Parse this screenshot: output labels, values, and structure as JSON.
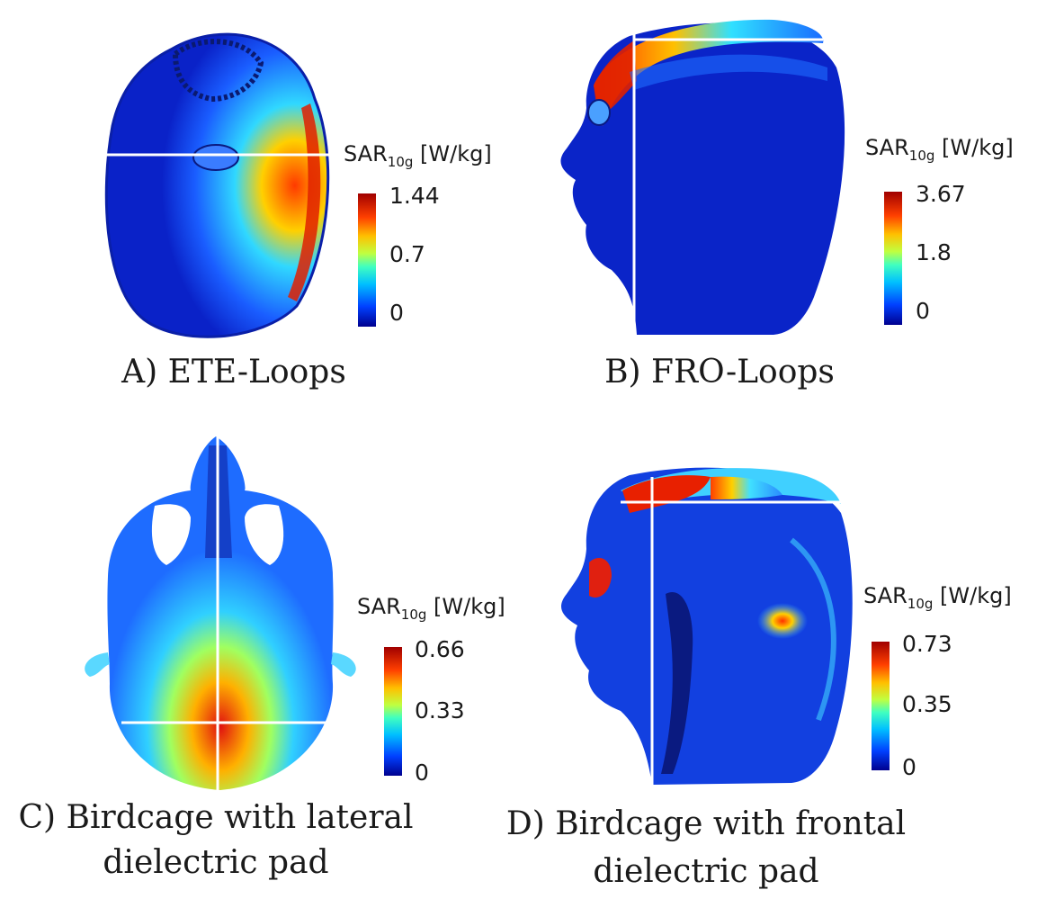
{
  "colorbar_title": {
    "base": "SAR",
    "sub": "10g",
    "unit": " [W/kg]"
  },
  "panels": [
    {
      "id": "A",
      "caption": "A) ETE-Loops",
      "ticks": {
        "max": "1.44",
        "mid": "0.7",
        "min": "0"
      }
    },
    {
      "id": "B",
      "caption": "B) FRO-Loops",
      "ticks": {
        "max": "3.67",
        "mid": "1.8",
        "min": "0"
      }
    },
    {
      "id": "C",
      "caption_line1": "C) Birdcage with lateral",
      "caption_line2": "dielectric pad",
      "ticks": {
        "max": "0.66",
        "mid": "0.33",
        "min": "0"
      }
    },
    {
      "id": "D",
      "caption_line1": "D) Birdcage with frontal",
      "caption_line2": "dielectric pad",
      "ticks": {
        "max": "0.73",
        "mid": "0.35",
        "min": "0"
      }
    }
  ],
  "colors": {
    "cold": "#0a1fd0",
    "cool": "#1e6cff",
    "cyan": "#27c7ff",
    "warm": "#ffd200",
    "hot": "#e01010"
  }
}
